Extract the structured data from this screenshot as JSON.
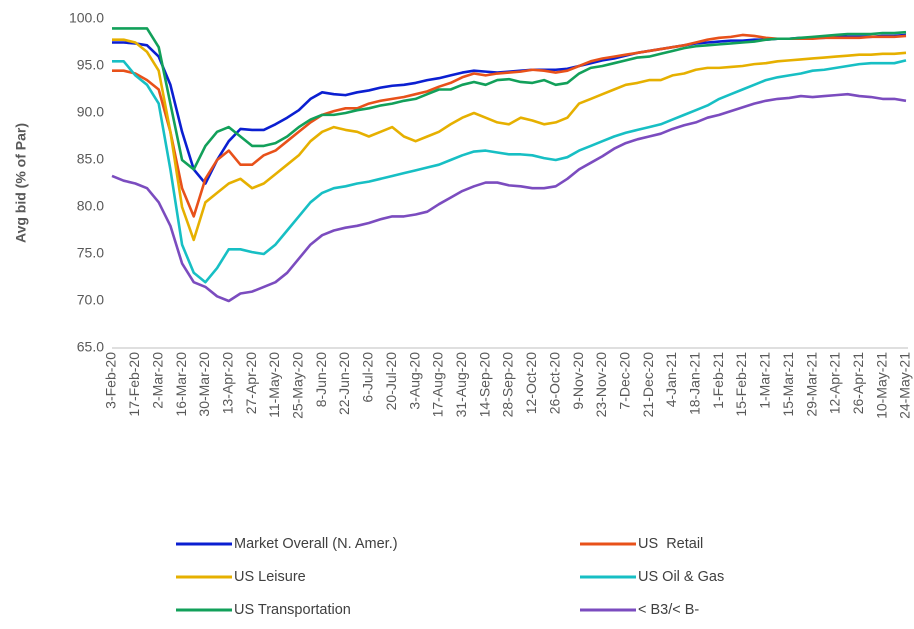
{
  "chart_data": {
    "type": "line",
    "y_label": "Avg bid (% of Par)",
    "categories": [
      "3-Feb-20",
      null,
      "17-Feb-20",
      null,
      "2-Mar-20",
      null,
      "16-Mar-20",
      null,
      "30-Mar-20",
      null,
      "13-Apr-20",
      null,
      "27-Apr-20",
      null,
      "11-May-20",
      null,
      "25-May-20",
      null,
      "8-Jun-20",
      null,
      "22-Jun-20",
      null,
      "6-Jul-20",
      null,
      "20-Jul-20",
      null,
      "3-Aug-20",
      null,
      "17-Aug-20",
      null,
      "31-Aug-20",
      null,
      "14-Sep-20",
      null,
      "28-Sep-20",
      null,
      "12-Oct-20",
      null,
      "26-Oct-20",
      null,
      "9-Nov-20",
      null,
      "23-Nov-20",
      null,
      "7-Dec-20",
      null,
      "21-Dec-20",
      null,
      "4-Jan-21",
      null,
      "18-Jan-21",
      null,
      "1-Feb-21",
      null,
      "15-Feb-21",
      null,
      "1-Mar-21",
      null,
      "15-Mar-21",
      null,
      "29-Mar-21",
      null,
      "12-Apr-21",
      null,
      "26-Apr-21",
      null,
      "10-May-21",
      null,
      "24-May-21"
    ],
    "series": [
      {
        "name": "Market Overall (N. Amer.)",
        "color": "#0b1fd1",
        "values": [
          97.5,
          97.5,
          97.4,
          97.2,
          96,
          93,
          88,
          84,
          82.5,
          85,
          87,
          88.3,
          88.2,
          88.2,
          88.8,
          89.5,
          90.3,
          91.5,
          92.2,
          92,
          91.9,
          92.2,
          92.4,
          92.7,
          92.9,
          93,
          93.2,
          93.5,
          93.7,
          94,
          94.3,
          94.5,
          94.4,
          94.3,
          94.4,
          94.5,
          94.6,
          94.6,
          94.6,
          94.7,
          95,
          95.3,
          95.6,
          95.8,
          96.1,
          96.4,
          96.6,
          96.8,
          97,
          97.2,
          97.4,
          97.5,
          97.6,
          97.7,
          97.7,
          97.8,
          97.8,
          97.9,
          97.9,
          98,
          98,
          98,
          98.1,
          98.1,
          98.1,
          98.1,
          98.2,
          98.2,
          98.3
        ]
      },
      {
        "name": "US  Retail",
        "color": "#e8511a",
        "values": [
          94.5,
          94.5,
          94.2,
          93.5,
          92.5,
          88,
          82,
          79,
          83,
          85,
          86,
          84.5,
          84.5,
          85.5,
          86,
          87,
          88,
          89,
          89.8,
          90.2,
          90.5,
          90.5,
          91,
          91.3,
          91.5,
          91.7,
          92,
          92.3,
          92.8,
          93.2,
          93.8,
          94.2,
          94,
          94.2,
          94.3,
          94.4,
          94.6,
          94.5,
          94.3,
          94.5,
          95,
          95.5,
          95.8,
          96,
          96.2,
          96.4,
          96.6,
          96.8,
          97,
          97.2,
          97.5,
          97.8,
          98,
          98.1,
          98.3,
          98.2,
          98,
          97.9,
          97.9,
          97.9,
          97.9,
          98,
          98,
          98,
          98,
          98.1,
          98.1,
          98.1,
          98.2
        ]
      },
      {
        "name": "US Leisure",
        "color": "#e6b000",
        "values": [
          97.8,
          97.8,
          97.5,
          96.5,
          94.5,
          88,
          80,
          76.5,
          80.5,
          81.5,
          82.5,
          83,
          82,
          82.5,
          83.5,
          84.5,
          85.5,
          87,
          88,
          88.5,
          88.2,
          88,
          87.5,
          88,
          88.5,
          87.5,
          87,
          87.5,
          88,
          88.8,
          89.5,
          90,
          89.5,
          89,
          88.8,
          89.5,
          89.2,
          88.8,
          89,
          89.5,
          91,
          91.5,
          92,
          92.5,
          93,
          93.2,
          93.5,
          93.5,
          94,
          94.2,
          94.6,
          94.8,
          94.8,
          94.9,
          95,
          95.2,
          95.3,
          95.5,
          95.6,
          95.7,
          95.8,
          95.9,
          96,
          96.1,
          96.2,
          96.2,
          96.3,
          96.3,
          96.4
        ]
      },
      {
        "name": "US Oil & Gas",
        "color": "#17bfc4",
        "values": [
          95.5,
          95.5,
          94,
          93,
          91,
          84,
          76,
          73,
          72,
          73.5,
          75.5,
          75.5,
          75.2,
          75,
          76,
          77.5,
          79,
          80.5,
          81.5,
          82,
          82.2,
          82.5,
          82.7,
          83,
          83.3,
          83.6,
          83.9,
          84.2,
          84.5,
          85,
          85.5,
          85.9,
          86,
          85.8,
          85.6,
          85.6,
          85.5,
          85.2,
          85,
          85.3,
          86,
          86.5,
          87,
          87.5,
          87.9,
          88.2,
          88.5,
          88.8,
          89.3,
          89.8,
          90.3,
          90.8,
          91.5,
          92,
          92.5,
          93,
          93.5,
          93.8,
          94,
          94.2,
          94.5,
          94.6,
          94.8,
          95,
          95.2,
          95.3,
          95.3,
          95.3,
          95.6
        ]
      },
      {
        "name": "US Transportation",
        "color": "#12a05a",
        "values": [
          99,
          99,
          99,
          99,
          97,
          91,
          85,
          84,
          86.5,
          88,
          88.5,
          87.5,
          86.5,
          86.5,
          86.8,
          87.5,
          88.5,
          89.3,
          89.8,
          89.8,
          90,
          90.3,
          90.5,
          90.8,
          91,
          91.3,
          91.5,
          92,
          92.5,
          92.5,
          93,
          93.3,
          93,
          93.5,
          93.6,
          93.3,
          93.2,
          93.5,
          93,
          93.2,
          94.2,
          94.8,
          95,
          95.3,
          95.6,
          95.9,
          96,
          96.3,
          96.6,
          96.9,
          97.1,
          97.2,
          97.3,
          97.4,
          97.5,
          97.6,
          97.8,
          97.9,
          97.9,
          98,
          98.1,
          98.2,
          98.3,
          98.4,
          98.4,
          98.4,
          98.5,
          98.5,
          98.6
        ]
      },
      {
        "name": "< B3/< B-",
        "color": "#7b4cbf",
        "values": [
          83.3,
          82.8,
          82.5,
          82,
          80.5,
          78,
          74,
          72,
          71.5,
          70.5,
          70,
          70.8,
          71,
          71.5,
          72,
          73,
          74.5,
          76,
          77,
          77.5,
          77.8,
          78,
          78.3,
          78.7,
          79,
          79,
          79.2,
          79.5,
          80.3,
          81,
          81.7,
          82.2,
          82.6,
          82.6,
          82.3,
          82.2,
          82,
          82,
          82.2,
          83,
          84,
          84.7,
          85.4,
          86.2,
          86.8,
          87.2,
          87.5,
          87.8,
          88.3,
          88.7,
          89,
          89.5,
          89.8,
          90.2,
          90.6,
          91,
          91.3,
          91.5,
          91.6,
          91.8,
          91.7,
          91.8,
          91.9,
          92,
          91.8,
          91.7,
          91.5,
          91.5,
          91.3
        ]
      }
    ],
    "ylim": [
      65,
      100
    ],
    "yticks": [
      {
        "value": 65,
        "label": "65.0"
      },
      {
        "value": 70,
        "label": "70.0"
      },
      {
        "value": 75,
        "label": "75.0"
      },
      {
        "value": 80,
        "label": "80.0"
      },
      {
        "value": 85,
        "label": "85.0"
      },
      {
        "value": 90,
        "label": "90.0"
      },
      {
        "value": 95,
        "label": "95.0"
      },
      {
        "value": 100,
        "label": "100.0"
      }
    ],
    "grid": false,
    "legend": "bottom"
  }
}
